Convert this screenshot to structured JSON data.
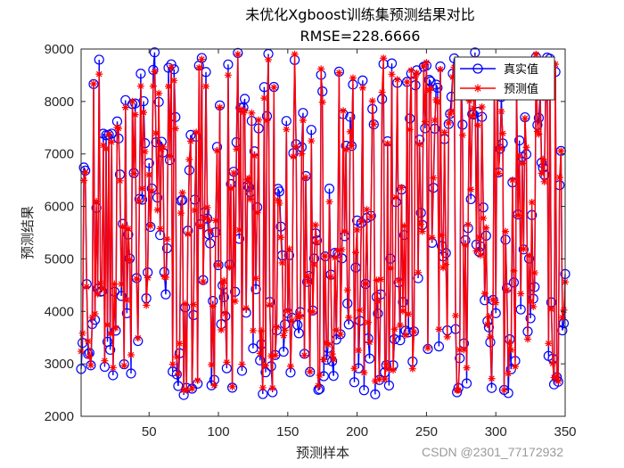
{
  "chart_data": {
    "type": "line",
    "title": "未优化Xgboost训练集预测结果对比",
    "subtitle": "RMSE=228.6666",
    "xlabel": "预测样本",
    "ylabel": "预测结果",
    "xlim": [
      1,
      350
    ],
    "ylim": [
      2000,
      9000
    ],
    "xticks": [
      50,
      100,
      150,
      200,
      250,
      300,
      350
    ],
    "yticks": [
      2000,
      3000,
      4000,
      5000,
      6000,
      7000,
      8000,
      9000
    ],
    "grid": false,
    "legend_position": "top-right",
    "series": [
      {
        "name": "真实值",
        "color": "#0000ff",
        "marker": "circle",
        "generator": {
          "seed": 20231,
          "count": 350,
          "min": 2400,
          "max": 8950
        }
      },
      {
        "name": "预测值",
        "color": "#ff0000",
        "marker": "asterisk",
        "derived_from": "真实值"
      }
    ]
  },
  "watermark": "CSDN @2301_77172932"
}
